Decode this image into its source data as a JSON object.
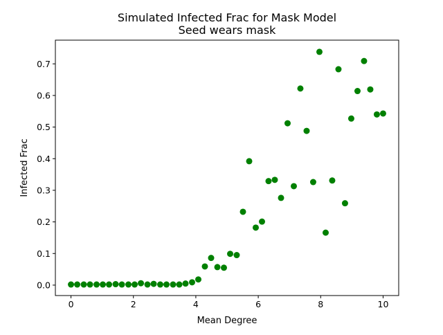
{
  "chart_data": {
    "type": "scatter",
    "title": "Simulated Infected Frac for Mask Model",
    "subtitle": "Seed wears mask",
    "xlabel": "Mean Degree",
    "ylabel": "Infected Frac",
    "xlim": [
      -0.5,
      10.5
    ],
    "ylim": [
      -0.033,
      0.775
    ],
    "xticks": [
      0,
      2,
      4,
      6,
      8,
      10
    ],
    "xtick_labels": [
      "0",
      "2",
      "4",
      "6",
      "8",
      "10"
    ],
    "yticks": [
      0.0,
      0.1,
      0.2,
      0.3,
      0.4,
      0.5,
      0.6,
      0.7
    ],
    "ytick_labels": [
      "0.0",
      "0.1",
      "0.2",
      "0.3",
      "0.4",
      "0.5",
      "0.6",
      "0.7"
    ],
    "grid": false,
    "marker_color": "#008000",
    "series": [
      {
        "name": "",
        "x": [
          0.0,
          0.2,
          0.41,
          0.61,
          0.82,
          1.02,
          1.22,
          1.43,
          1.63,
          1.84,
          2.04,
          2.24,
          2.45,
          2.65,
          2.86,
          3.06,
          3.27,
          3.47,
          3.67,
          3.88,
          4.08,
          4.29,
          4.49,
          4.69,
          4.9,
          5.1,
          5.31,
          5.51,
          5.71,
          5.92,
          6.12,
          6.33,
          6.53,
          6.73,
          6.94,
          7.14,
          7.35,
          7.55,
          7.76,
          7.96,
          8.16,
          8.37,
          8.57,
          8.78,
          8.98,
          9.18,
          9.39,
          9.59,
          9.8,
          10.0
        ],
        "y": [
          0.002,
          0.002,
          0.002,
          0.002,
          0.002,
          0.002,
          0.002,
          0.003,
          0.002,
          0.002,
          0.002,
          0.006,
          0.002,
          0.004,
          0.002,
          0.002,
          0.002,
          0.002,
          0.005,
          0.009,
          0.018,
          0.059,
          0.086,
          0.057,
          0.055,
          0.099,
          0.095,
          0.232,
          0.392,
          0.182,
          0.201,
          0.329,
          0.333,
          0.276,
          0.512,
          0.313,
          0.622,
          0.488,
          0.326,
          0.738,
          0.166,
          0.331,
          0.683,
          0.259,
          0.527,
          0.614,
          0.709,
          0.619,
          0.54,
          0.543
        ]
      }
    ]
  }
}
